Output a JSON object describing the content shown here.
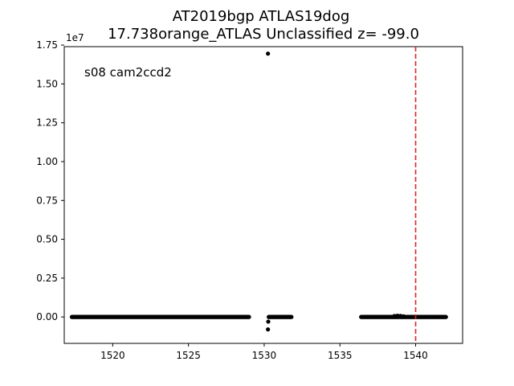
{
  "chart_data": {
    "type": "scatter",
    "title": "AT2019bgp  ATLAS19dog",
    "subtitle": "17.738orange_ATLAS Unclassified z= -99.0",
    "annotation": "s08 cam2ccd2",
    "y_offset_label": "1e7",
    "xlabel": "",
    "ylabel": "",
    "xlim": [
      1516.8,
      1543.1
    ],
    "ylim": [
      -1700000,
      17400000
    ],
    "x_ticks": [
      1520,
      1525,
      1530,
      1535,
      1540
    ],
    "x_tick_labels": [
      "1520",
      "1525",
      "1530",
      "1535",
      "1540"
    ],
    "y_ticks": [
      0,
      2500000,
      5000000,
      7500000,
      10000000,
      12500000,
      15000000,
      17500000
    ],
    "y_tick_labels": [
      "0.00",
      "0.25",
      "0.50",
      "0.75",
      "1.00",
      "1.25",
      "1.50",
      "1.75"
    ],
    "grid": false,
    "marker_color": "#000000",
    "vline": {
      "x": 1540.0,
      "color": "#d62728",
      "style": "dashed"
    },
    "series": [
      {
        "segments": [
          {
            "x_start": 1517.3,
            "x_end": 1529.0,
            "step": 0.05,
            "y": 0
          },
          {
            "x_start": 1530.3,
            "x_end": 1531.8,
            "step": 0.05,
            "y": 0
          },
          {
            "x_start": 1536.4,
            "x_end": 1542.0,
            "step": 0.05,
            "y": 0
          }
        ],
        "points": [
          {
            "x": 1530.25,
            "y": 16950000
          },
          {
            "x": 1530.27,
            "y": -300000
          },
          {
            "x": 1530.25,
            "y": -800000
          },
          {
            "x": 1538.6,
            "y": 60000
          },
          {
            "x": 1538.8,
            "y": 80000
          },
          {
            "x": 1539.0,
            "y": 70000
          },
          {
            "x": 1539.2,
            "y": 40000
          }
        ]
      }
    ]
  }
}
